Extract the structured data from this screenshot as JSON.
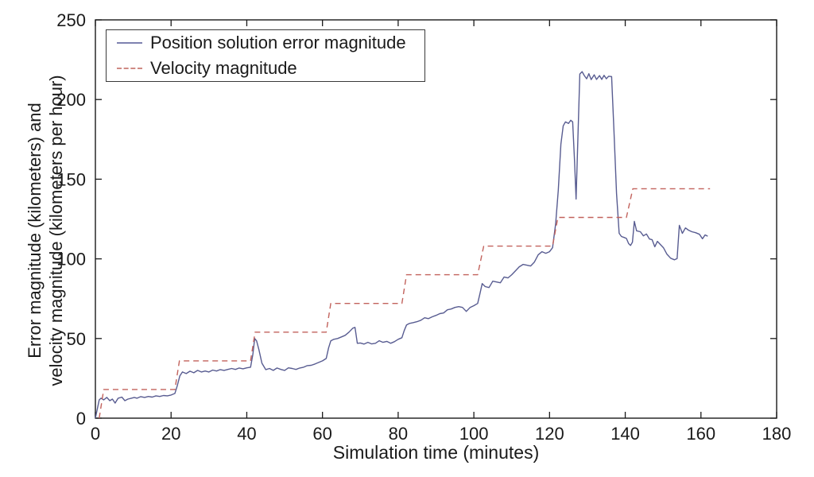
{
  "figure_title": "",
  "chart_data": {
    "type": "line",
    "title": "",
    "xlabel": "Simulation time (minutes)",
    "ylabel_line1": "Error magnitude (kilometers) and",
    "ylabel_line2": "velocity magnitude (kilometers per hour)",
    "xlim": [
      0,
      180
    ],
    "ylim": [
      0,
      250
    ],
    "x_ticks": [
      0,
      20,
      40,
      60,
      80,
      100,
      120,
      140,
      160,
      180
    ],
    "y_ticks": [
      0,
      50,
      100,
      150,
      200,
      250
    ],
    "grid": false,
    "box": true,
    "tick_direction": "in",
    "legend_position": "top-left",
    "axis_color": "#1a1a1a",
    "background_color": "#ffffff",
    "series": [
      {
        "name": "Position solution error magnitude",
        "type": "line",
        "style": "solid",
        "color": "#585c91",
        "width": 1.4,
        "points": [
          [
            0,
            0
          ],
          [
            1,
            11.5
          ],
          [
            1.5,
            12.5
          ],
          [
            2.2,
            11.5
          ],
          [
            3,
            13
          ],
          [
            3.8,
            11
          ],
          [
            4.5,
            12
          ],
          [
            5.2,
            9.5
          ],
          [
            6,
            12.5
          ],
          [
            7,
            13.2
          ],
          [
            7.8,
            11
          ],
          [
            8.6,
            12
          ],
          [
            9.5,
            12.5
          ],
          [
            10.3,
            13
          ],
          [
            11,
            12.5
          ],
          [
            12,
            13.5
          ],
          [
            13,
            13
          ],
          [
            14,
            13.6
          ],
          [
            15,
            13.2
          ],
          [
            16,
            14
          ],
          [
            17,
            13.6
          ],
          [
            18,
            14.2
          ],
          [
            19,
            14
          ],
          [
            20,
            14.5
          ],
          [
            21,
            15.5
          ],
          [
            21.6,
            20
          ],
          [
            22.3,
            26.5
          ],
          [
            23,
            29
          ],
          [
            24,
            28
          ],
          [
            25,
            29.5
          ],
          [
            26,
            28.5
          ],
          [
            27,
            30
          ],
          [
            28,
            29
          ],
          [
            29,
            29.6
          ],
          [
            30,
            29
          ],
          [
            31,
            30.2
          ],
          [
            32,
            29.6
          ],
          [
            33,
            30.5
          ],
          [
            34,
            30
          ],
          [
            35,
            30.6
          ],
          [
            36,
            31.2
          ],
          [
            37,
            30.6
          ],
          [
            38,
            31.5
          ],
          [
            39,
            31
          ],
          [
            40,
            31.6
          ],
          [
            41,
            32
          ],
          [
            41.6,
            40
          ],
          [
            42.1,
            50
          ],
          [
            42.6,
            48.5
          ],
          [
            43.2,
            43
          ],
          [
            44,
            34.5
          ],
          [
            45,
            30.5
          ],
          [
            46,
            31.2
          ],
          [
            47,
            30
          ],
          [
            48,
            31.5
          ],
          [
            49,
            30.6
          ],
          [
            50,
            30
          ],
          [
            51,
            31.6
          ],
          [
            52,
            31.2
          ],
          [
            53,
            30.6
          ],
          [
            54,
            31.5
          ],
          [
            55,
            32
          ],
          [
            56,
            33
          ],
          [
            57,
            33.2
          ],
          [
            58,
            34
          ],
          [
            59,
            35
          ],
          [
            60,
            36
          ],
          [
            61,
            37.5
          ],
          [
            61.6,
            44
          ],
          [
            62.2,
            48.5
          ],
          [
            63,
            49.5
          ],
          [
            64,
            50
          ],
          [
            65,
            51
          ],
          [
            66,
            52
          ],
          [
            67,
            54
          ],
          [
            68,
            56.5
          ],
          [
            68.6,
            57
          ],
          [
            69.2,
            47
          ],
          [
            70,
            47.2
          ],
          [
            71,
            46.5
          ],
          [
            72,
            47.6
          ],
          [
            73,
            46.6
          ],
          [
            74,
            47
          ],
          [
            75,
            48.6
          ],
          [
            76,
            47.6
          ],
          [
            77,
            48.2
          ],
          [
            78,
            47
          ],
          [
            79,
            48
          ],
          [
            80,
            49.5
          ],
          [
            81,
            50.5
          ],
          [
            81.6,
            55
          ],
          [
            82.2,
            58.5
          ],
          [
            83,
            59.5
          ],
          [
            84,
            60
          ],
          [
            85,
            60.6
          ],
          [
            86,
            61.5
          ],
          [
            87,
            63
          ],
          [
            88,
            62.5
          ],
          [
            89,
            63.6
          ],
          [
            90,
            64.5
          ],
          [
            91,
            65.6
          ],
          [
            92,
            66
          ],
          [
            93,
            68
          ],
          [
            94,
            68.5
          ],
          [
            95,
            69.5
          ],
          [
            96,
            70
          ],
          [
            97,
            69.5
          ],
          [
            98,
            67
          ],
          [
            99,
            69.5
          ],
          [
            100,
            70.6
          ],
          [
            101,
            72
          ],
          [
            101.6,
            78
          ],
          [
            102.2,
            84.5
          ],
          [
            103,
            82.6
          ],
          [
            104,
            82
          ],
          [
            105,
            86
          ],
          [
            106,
            85.5
          ],
          [
            107,
            85
          ],
          [
            108,
            88.6
          ],
          [
            109,
            88
          ],
          [
            110,
            90
          ],
          [
            111,
            92.5
          ],
          [
            112,
            95
          ],
          [
            113,
            96.5
          ],
          [
            114,
            96
          ],
          [
            115,
            95.5
          ],
          [
            116,
            98
          ],
          [
            117,
            102.5
          ],
          [
            118,
            104.5
          ],
          [
            119,
            103.5
          ],
          [
            120,
            104.5
          ],
          [
            120.8,
            107
          ],
          [
            121.6,
            122
          ],
          [
            122.3,
            143
          ],
          [
            123,
            172
          ],
          [
            123.6,
            183.5
          ],
          [
            124.2,
            186
          ],
          [
            125,
            185
          ],
          [
            125.6,
            187
          ],
          [
            126.1,
            186
          ],
          [
            126.6,
            161
          ],
          [
            127,
            137.5
          ],
          [
            127.5,
            176
          ],
          [
            128,
            216
          ],
          [
            128.6,
            217.5
          ],
          [
            129.2,
            215
          ],
          [
            129.8,
            213
          ],
          [
            130.4,
            216.2
          ],
          [
            131,
            212.5
          ],
          [
            131.8,
            215.5
          ],
          [
            132.4,
            212.6
          ],
          [
            133.2,
            215
          ],
          [
            133.8,
            212.6
          ],
          [
            134.4,
            215.2
          ],
          [
            135,
            213
          ],
          [
            135.6,
            214.6
          ],
          [
            136.4,
            214.4
          ],
          [
            137,
            181
          ],
          [
            137.7,
            141
          ],
          [
            138.4,
            116
          ],
          [
            139,
            114
          ],
          [
            139.7,
            113.4
          ],
          [
            140.3,
            112.8
          ],
          [
            140.9,
            109.6
          ],
          [
            141.4,
            108.4
          ],
          [
            141.9,
            110.5
          ],
          [
            142.4,
            123.5
          ],
          [
            143,
            117.6
          ],
          [
            144,
            117
          ],
          [
            144.8,
            114.4
          ],
          [
            145.6,
            115.6
          ],
          [
            146.4,
            112.5
          ],
          [
            147.1,
            112
          ],
          [
            147.8,
            107.6
          ],
          [
            148.5,
            111
          ],
          [
            149.3,
            109
          ],
          [
            150.1,
            107
          ],
          [
            151,
            103
          ],
          [
            152,
            100.4
          ],
          [
            153,
            99.4
          ],
          [
            153.7,
            100.2
          ],
          [
            154.3,
            121
          ],
          [
            155.1,
            116
          ],
          [
            155.9,
            119.4
          ],
          [
            156.7,
            118
          ],
          [
            157.6,
            117
          ],
          [
            158.6,
            116.4
          ],
          [
            159.6,
            115.4
          ],
          [
            160.4,
            112.6
          ],
          [
            161.1,
            115
          ],
          [
            161.8,
            114.2
          ]
        ]
      },
      {
        "name": "Velocity magnitude",
        "type": "line",
        "style": "dashed",
        "color": "#c2625c",
        "width": 1.4,
        "dash": "7,5",
        "points": [
          [
            1,
            0
          ],
          [
            2.2,
            18
          ],
          [
            21,
            18
          ],
          [
            22.2,
            36
          ],
          [
            41,
            36
          ],
          [
            42.2,
            54
          ],
          [
            61,
            54
          ],
          [
            62.2,
            72
          ],
          [
            81,
            72
          ],
          [
            82.2,
            90
          ],
          [
            101,
            90
          ],
          [
            102.6,
            108
          ],
          [
            120.8,
            108
          ],
          [
            122.2,
            126
          ],
          [
            140.3,
            126
          ],
          [
            142,
            144
          ],
          [
            162.4,
            144
          ]
        ]
      }
    ]
  }
}
